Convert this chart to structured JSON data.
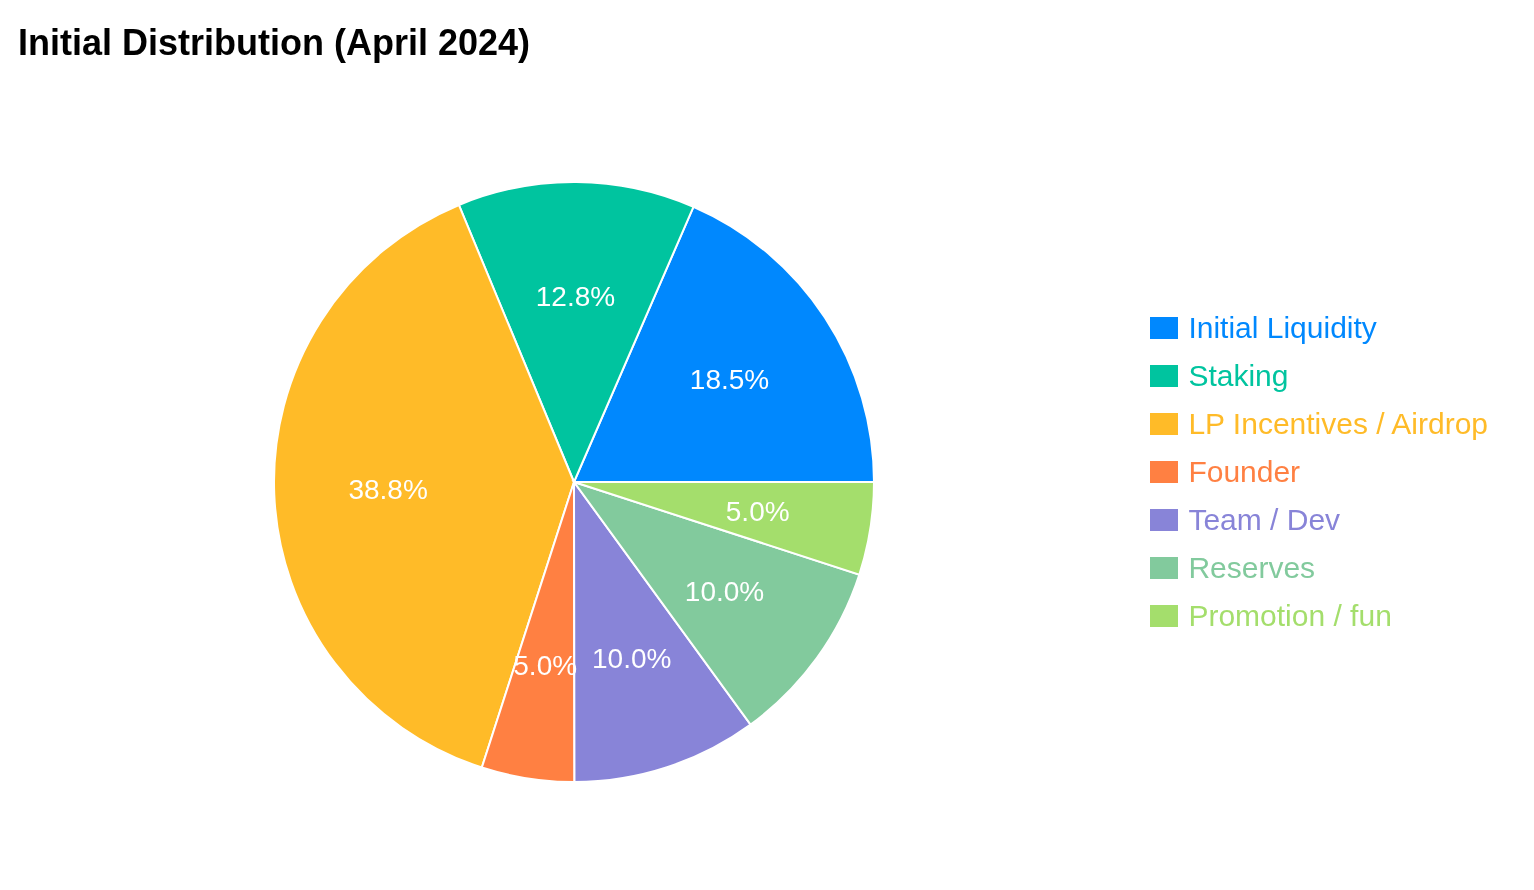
{
  "chart_data": {
    "type": "pie",
    "title": "Initial Distribution (April 2024)",
    "categories": [
      "Initial Liquidity",
      "Staking",
      "LP Incentives / Airdrop",
      "Founder",
      "Team / Dev",
      "Reserves",
      "Promotion / fun"
    ],
    "values": [
      18.5,
      12.8,
      38.8,
      5.0,
      10.0,
      10.0,
      5.0
    ],
    "colors": [
      "#0088fe",
      "#00c49f",
      "#ffbb28",
      "#ff8042",
      "#8884d8",
      "#82ca9d",
      "#a4de6c"
    ],
    "value_labels": [
      "18.5%",
      "12.8%",
      "38.8%",
      "5.0%",
      "10.0%",
      "10.0%",
      "5.0%"
    ],
    "legend": "right"
  }
}
